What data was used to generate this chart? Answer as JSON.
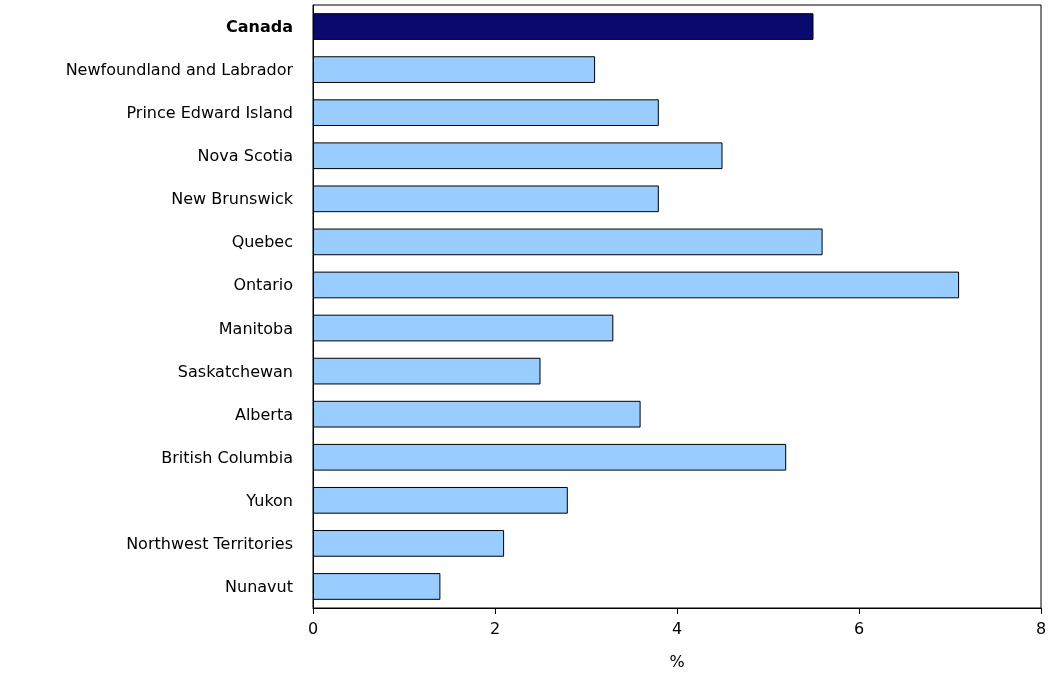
{
  "chart_data": {
    "type": "bar",
    "orientation": "horizontal",
    "xlabel": "%",
    "categories": [
      "Canada",
      "Newfoundland and Labrador",
      "Prince Edward Island",
      "Nova Scotia",
      "New Brunswick",
      "Quebec",
      "Ontario",
      "Manitoba",
      "Saskatchewan",
      "Alberta",
      "British Columbia",
      "Yukon",
      "Northwest Territories",
      "Nunavut"
    ],
    "values": [
      5.5,
      3.1,
      3.8,
      4.5,
      3.8,
      5.6,
      7.1,
      3.3,
      2.5,
      3.6,
      5.2,
      2.8,
      2.1,
      1.4
    ],
    "colors": [
      "#0a0a6e",
      "#99ccff",
      "#99ccff",
      "#99ccff",
      "#99ccff",
      "#99ccff",
      "#99ccff",
      "#99ccff",
      "#99ccff",
      "#99ccff",
      "#99ccff",
      "#99ccff",
      "#99ccff",
      "#99ccff"
    ],
    "xlim": [
      0,
      8
    ],
    "xticks": [
      0,
      2,
      4,
      6,
      8
    ],
    "grid": false
  }
}
